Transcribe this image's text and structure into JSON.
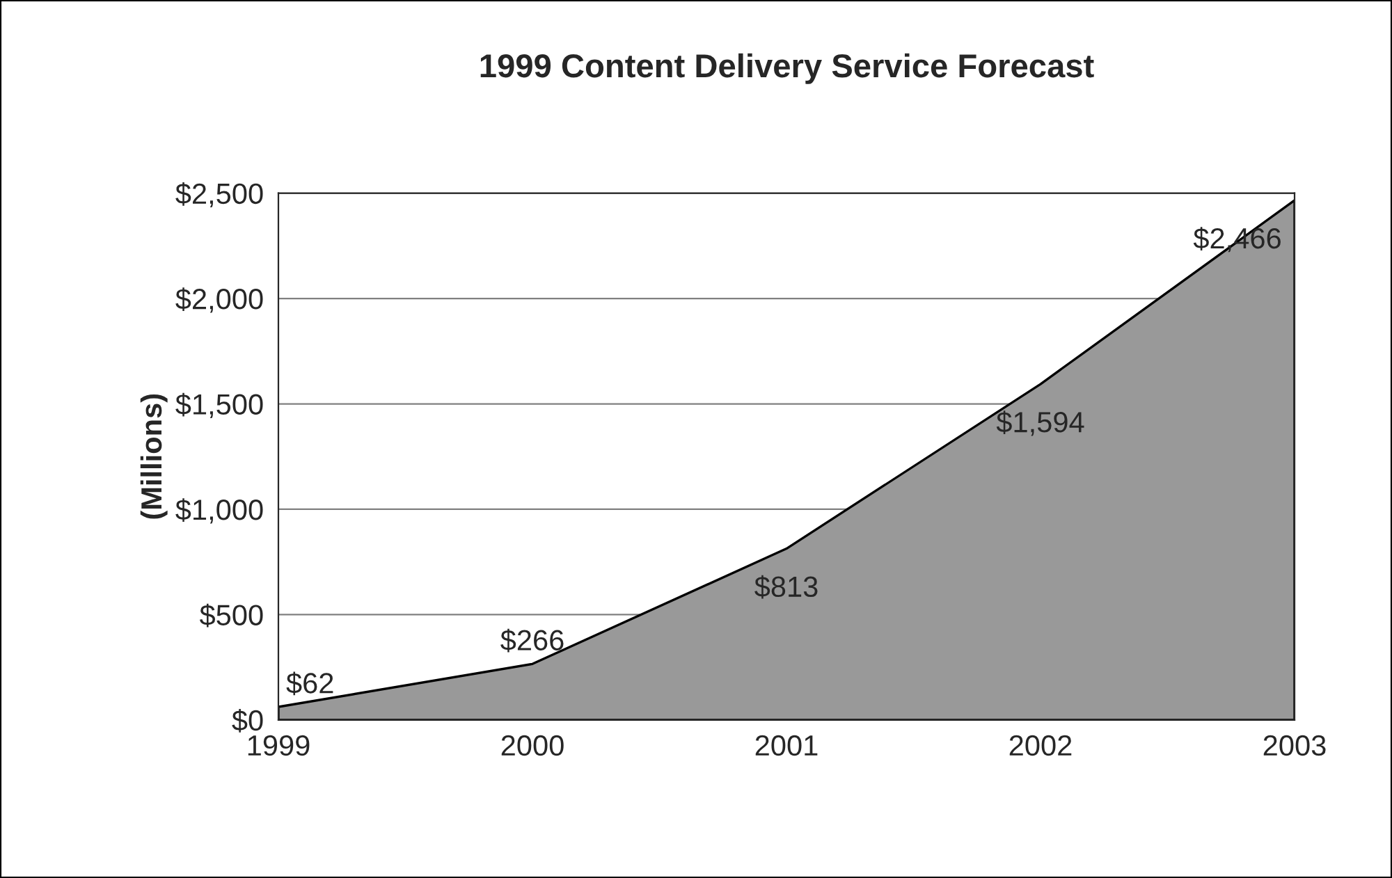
{
  "chart_data": {
    "type": "area",
    "title": "1999 Content Delivery Service Forecast",
    "ylabel": "(Millions)",
    "categories": [
      "1999",
      "2000",
      "2001",
      "2002",
      "2003"
    ],
    "values": [
      62,
      266,
      813,
      1594,
      2466
    ],
    "value_labels": [
      "$62",
      "$266",
      "$813",
      "$1,594",
      "$2,466"
    ],
    "color": "#999999",
    "ylim": [
      0,
      2500
    ],
    "yticks": [
      {
        "value": 0,
        "label": "$0"
      },
      {
        "value": 500,
        "label": "$500"
      },
      {
        "value": 1000,
        "label": "$1,000"
      },
      {
        "value": 1500,
        "label": "$1,500"
      },
      {
        "value": 2000,
        "label": "$2,000"
      },
      {
        "value": 2500,
        "label": "$2,500"
      }
    ],
    "grid": "y",
    "legend": false
  }
}
